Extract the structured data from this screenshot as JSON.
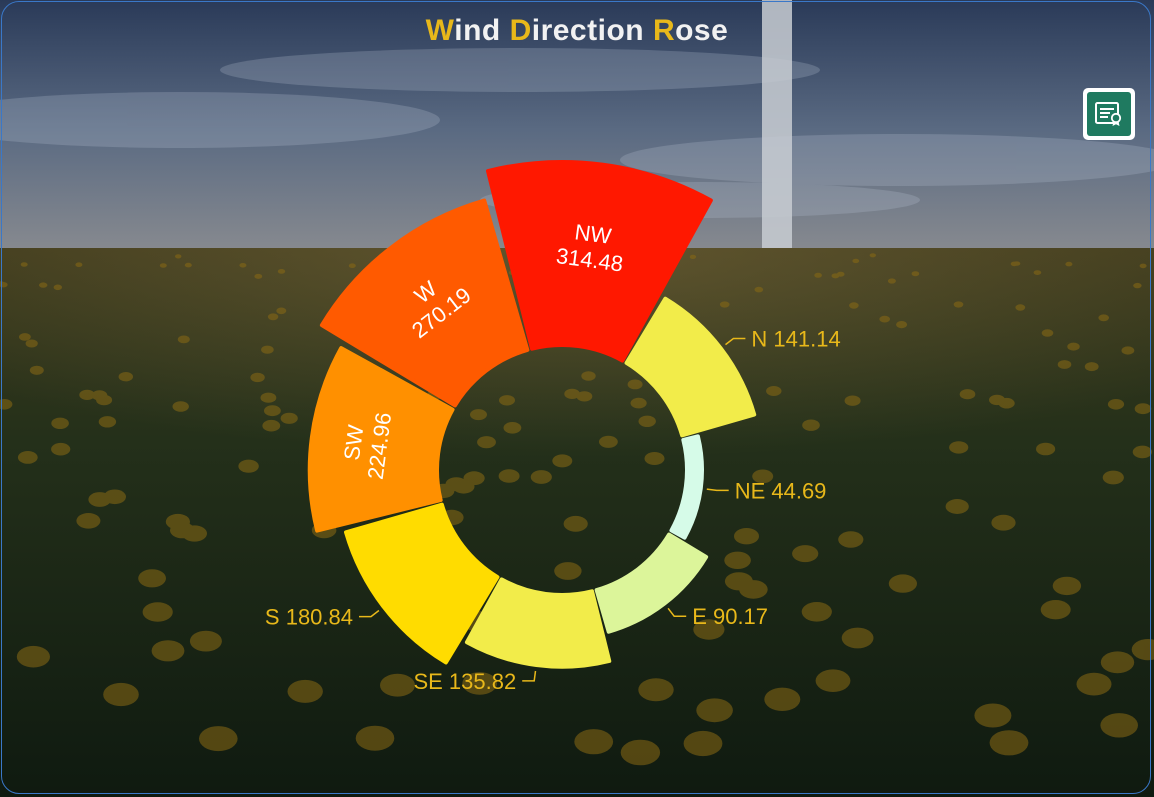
{
  "title": {
    "text": "Wind Direction Rose",
    "parts": [
      {
        "cap": "W",
        "rest": "ind "
      },
      {
        "cap": "D",
        "rest": "irection "
      },
      {
        "cap": "R",
        "rest": "ose"
      }
    ]
  },
  "toolbar": {
    "report_icon": "certificate-document-icon",
    "report_color": "#1f7a60"
  },
  "chart_data": {
    "type": "pie",
    "variant": "nightingale-rose",
    "title": "Wind Direction Rose",
    "categories": [
      "N",
      "NE",
      "E",
      "SE",
      "S",
      "SW",
      "W",
      "NW"
    ],
    "values": [
      141.14,
      44.69,
      90.17,
      135.82,
      180.84,
      224.96,
      270.19,
      314.48
    ],
    "colors": [
      "#f2ec4a",
      "#d6fbe8",
      "#dcf59a",
      "#f2ec4a",
      "#ffdc00",
      "#ff9000",
      "#ff5a00",
      "#ff1800"
    ],
    "label_color": "#e8b81a",
    "inside_label_color": "#ffffff"
  }
}
